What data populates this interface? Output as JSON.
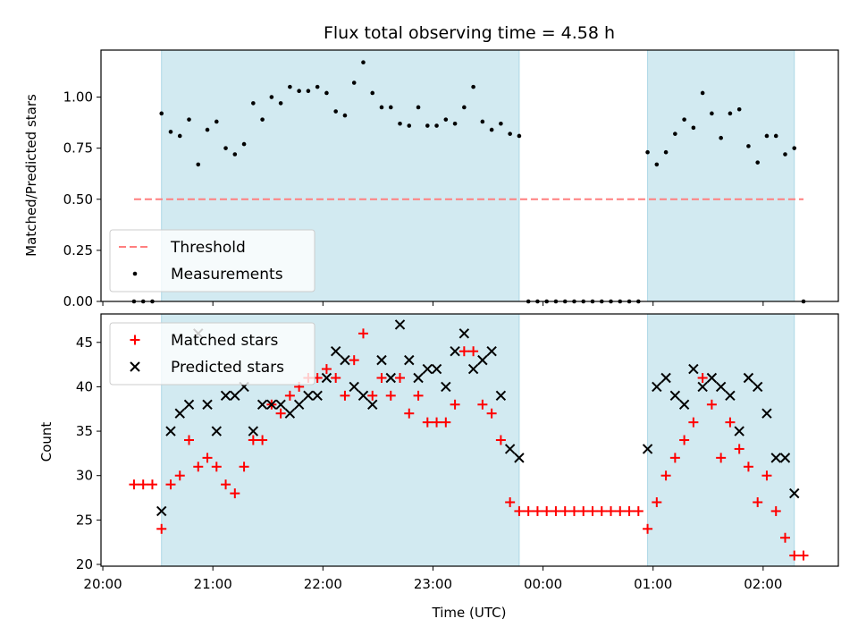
{
  "chart_data": [
    {
      "type": "scatter",
      "title": "Flux total observing time = 4.58 h",
      "ylabel": "Matched/Predicted stars",
      "xlabel": "",
      "ylim": [
        0,
        1.23
      ],
      "yticks": [
        "0.00",
        "0.25",
        "0.50",
        "0.75",
        "1.00"
      ],
      "grid": false,
      "legend_position": "lower-left",
      "shaded_intervals": [
        [
          "20:32",
          "23:47"
        ],
        [
          "00:57",
          "02:17"
        ]
      ],
      "threshold": {
        "name": "Threshold",
        "value": 0.5,
        "x_start": "20:17",
        "x_end": "02:22",
        "color": "#ff7f7f",
        "style": "dashed"
      },
      "series": [
        {
          "name": "Measurements",
          "marker": "dot",
          "color": "#000000",
          "points": [
            [
              "20:17",
              0.0
            ],
            [
              "20:22",
              0.0
            ],
            [
              "20:27",
              0.0
            ],
            [
              "20:32",
              0.92
            ],
            [
              "20:37",
              0.83
            ],
            [
              "20:42",
              0.81
            ],
            [
              "20:47",
              0.89
            ],
            [
              "20:52",
              0.67
            ],
            [
              "20:57",
              0.84
            ],
            [
              "21:02",
              0.88
            ],
            [
              "21:07",
              0.75
            ],
            [
              "21:12",
              0.72
            ],
            [
              "21:17",
              0.77
            ],
            [
              "21:22",
              0.97
            ],
            [
              "21:27",
              0.89
            ],
            [
              "21:32",
              1.0
            ],
            [
              "21:37",
              0.97
            ],
            [
              "21:42",
              1.05
            ],
            [
              "21:47",
              1.03
            ],
            [
              "21:52",
              1.03
            ],
            [
              "21:57",
              1.05
            ],
            [
              "22:02",
              1.02
            ],
            [
              "22:07",
              0.93
            ],
            [
              "22:12",
              0.91
            ],
            [
              "22:17",
              1.07
            ],
            [
              "22:22",
              1.17
            ],
            [
              "22:27",
              1.02
            ],
            [
              "22:32",
              0.95
            ],
            [
              "22:37",
              0.95
            ],
            [
              "22:42",
              0.87
            ],
            [
              "22:47",
              0.86
            ],
            [
              "22:52",
              0.95
            ],
            [
              "22:57",
              0.86
            ],
            [
              "23:02",
              0.86
            ],
            [
              "23:07",
              0.89
            ],
            [
              "23:12",
              0.87
            ],
            [
              "23:17",
              0.95
            ],
            [
              "23:22",
              1.05
            ],
            [
              "23:27",
              0.88
            ],
            [
              "23:32",
              0.84
            ],
            [
              "23:37",
              0.87
            ],
            [
              "23:42",
              0.82
            ],
            [
              "23:47",
              0.81
            ],
            [
              "23:52",
              0.0
            ],
            [
              "23:57",
              0.0
            ],
            [
              "00:02",
              0.0
            ],
            [
              "00:07",
              0.0
            ],
            [
              "00:12",
              0.0
            ],
            [
              "00:17",
              0.0
            ],
            [
              "00:22",
              0.0
            ],
            [
              "00:27",
              0.0
            ],
            [
              "00:32",
              0.0
            ],
            [
              "00:37",
              0.0
            ],
            [
              "00:42",
              0.0
            ],
            [
              "00:47",
              0.0
            ],
            [
              "00:52",
              0.0
            ],
            [
              "00:57",
              0.73
            ],
            [
              "01:02",
              0.67
            ],
            [
              "01:07",
              0.73
            ],
            [
              "01:12",
              0.82
            ],
            [
              "01:17",
              0.89
            ],
            [
              "01:22",
              0.85
            ],
            [
              "01:27",
              1.02
            ],
            [
              "01:32",
              0.92
            ],
            [
              "01:37",
              0.8
            ],
            [
              "01:42",
              0.92
            ],
            [
              "01:47",
              0.94
            ],
            [
              "01:52",
              0.76
            ],
            [
              "01:57",
              0.68
            ],
            [
              "02:02",
              0.81
            ],
            [
              "02:07",
              0.81
            ],
            [
              "02:12",
              0.72
            ],
            [
              "02:17",
              0.75
            ],
            [
              "02:22",
              0.0
            ]
          ]
        }
      ]
    },
    {
      "type": "scatter",
      "title": "",
      "ylabel": "Count",
      "xlabel": "Time (UTC)",
      "ylim": [
        19.8,
        48.2
      ],
      "yticks": [
        "20",
        "25",
        "30",
        "35",
        "40",
        "45"
      ],
      "xticks": [
        "20:00",
        "21:00",
        "22:00",
        "23:00",
        "00:00",
        "01:00",
        "02:00"
      ],
      "x_range": [
        "19:59",
        "02:41"
      ],
      "grid": false,
      "legend_position": "upper-left",
      "shaded_intervals": [
        [
          "20:32",
          "23:47"
        ],
        [
          "00:57",
          "02:17"
        ]
      ],
      "series": [
        {
          "name": "Matched stars",
          "marker": "plus",
          "color": "#ff0000",
          "points": [
            [
              "20:17",
              29
            ],
            [
              "20:22",
              29
            ],
            [
              "20:27",
              29
            ],
            [
              "20:32",
              24
            ],
            [
              "20:37",
              29
            ],
            [
              "20:42",
              30
            ],
            [
              "20:47",
              34
            ],
            [
              "20:52",
              31
            ],
            [
              "20:57",
              32
            ],
            [
              "21:02",
              31
            ],
            [
              "21:07",
              29
            ],
            [
              "21:12",
              28
            ],
            [
              "21:17",
              31
            ],
            [
              "21:22",
              34
            ],
            [
              "21:27",
              34
            ],
            [
              "21:32",
              38
            ],
            [
              "21:37",
              37
            ],
            [
              "21:42",
              39
            ],
            [
              "21:47",
              40
            ],
            [
              "21:52",
              41
            ],
            [
              "21:57",
              41
            ],
            [
              "22:02",
              42
            ],
            [
              "22:07",
              41
            ],
            [
              "22:12",
              39
            ],
            [
              "22:17",
              43
            ],
            [
              "22:22",
              46
            ],
            [
              "22:27",
              39
            ],
            [
              "22:32",
              41
            ],
            [
              "22:37",
              39
            ],
            [
              "22:42",
              41
            ],
            [
              "22:47",
              37
            ],
            [
              "22:52",
              39
            ],
            [
              "22:57",
              36
            ],
            [
              "23:02",
              36
            ],
            [
              "23:07",
              36
            ],
            [
              "23:12",
              38
            ],
            [
              "23:17",
              44
            ],
            [
              "23:22",
              44
            ],
            [
              "23:27",
              38
            ],
            [
              "23:32",
              37
            ],
            [
              "23:37",
              34
            ],
            [
              "23:42",
              27
            ],
            [
              "23:47",
              26
            ],
            [
              "23:52",
              26
            ],
            [
              "23:57",
              26
            ],
            [
              "00:02",
              26
            ],
            [
              "00:07",
              26
            ],
            [
              "00:12",
              26
            ],
            [
              "00:17",
              26
            ],
            [
              "00:22",
              26
            ],
            [
              "00:27",
              26
            ],
            [
              "00:32",
              26
            ],
            [
              "00:37",
              26
            ],
            [
              "00:42",
              26
            ],
            [
              "00:47",
              26
            ],
            [
              "00:52",
              26
            ],
            [
              "00:57",
              24
            ],
            [
              "01:02",
              27
            ],
            [
              "01:07",
              30
            ],
            [
              "01:12",
              32
            ],
            [
              "01:17",
              34
            ],
            [
              "01:22",
              36
            ],
            [
              "01:27",
              41
            ],
            [
              "01:32",
              38
            ],
            [
              "01:37",
              32
            ],
            [
              "01:42",
              36
            ],
            [
              "01:47",
              33
            ],
            [
              "01:52",
              31
            ],
            [
              "01:57",
              27
            ],
            [
              "02:02",
              30
            ],
            [
              "02:07",
              26
            ],
            [
              "02:12",
              23
            ],
            [
              "02:17",
              21
            ],
            [
              "02:22",
              21
            ]
          ]
        },
        {
          "name": "Predicted stars",
          "marker": "x",
          "color": "#000000",
          "points": [
            [
              "20:32",
              26
            ],
            [
              "20:37",
              35
            ],
            [
              "20:42",
              37
            ],
            [
              "20:47",
              38
            ],
            [
              "20:52",
              46
            ],
            [
              "20:57",
              38
            ],
            [
              "21:02",
              35
            ],
            [
              "21:07",
              39
            ],
            [
              "21:12",
              39
            ],
            [
              "21:17",
              40
            ],
            [
              "21:22",
              35
            ],
            [
              "21:27",
              38
            ],
            [
              "21:32",
              38
            ],
            [
              "21:37",
              38
            ],
            [
              "21:42",
              37
            ],
            [
              "21:47",
              38
            ],
            [
              "21:52",
              39
            ],
            [
              "21:57",
              39
            ],
            [
              "22:02",
              41
            ],
            [
              "22:07",
              44
            ],
            [
              "22:12",
              43
            ],
            [
              "22:17",
              40
            ],
            [
              "22:22",
              39
            ],
            [
              "22:27",
              38
            ],
            [
              "22:32",
              43
            ],
            [
              "22:37",
              41
            ],
            [
              "22:42",
              47
            ],
            [
              "22:47",
              43
            ],
            [
              "22:52",
              41
            ],
            [
              "22:57",
              42
            ],
            [
              "23:02",
              42
            ],
            [
              "23:07",
              40
            ],
            [
              "23:12",
              44
            ],
            [
              "23:17",
              46
            ],
            [
              "23:22",
              42
            ],
            [
              "23:27",
              43
            ],
            [
              "23:32",
              44
            ],
            [
              "23:37",
              39
            ],
            [
              "23:42",
              33
            ],
            [
              "23:47",
              32
            ],
            [
              "00:57",
              33
            ],
            [
              "01:02",
              40
            ],
            [
              "01:07",
              41
            ],
            [
              "01:12",
              39
            ],
            [
              "01:17",
              38
            ],
            [
              "01:22",
              42
            ],
            [
              "01:27",
              40
            ],
            [
              "01:32",
              41
            ],
            [
              "01:37",
              40
            ],
            [
              "01:42",
              39
            ],
            [
              "01:47",
              35
            ],
            [
              "01:52",
              41
            ],
            [
              "01:57",
              40
            ],
            [
              "02:02",
              37
            ],
            [
              "02:07",
              32
            ],
            [
              "02:12",
              32
            ],
            [
              "02:17",
              28
            ]
          ]
        }
      ]
    }
  ]
}
